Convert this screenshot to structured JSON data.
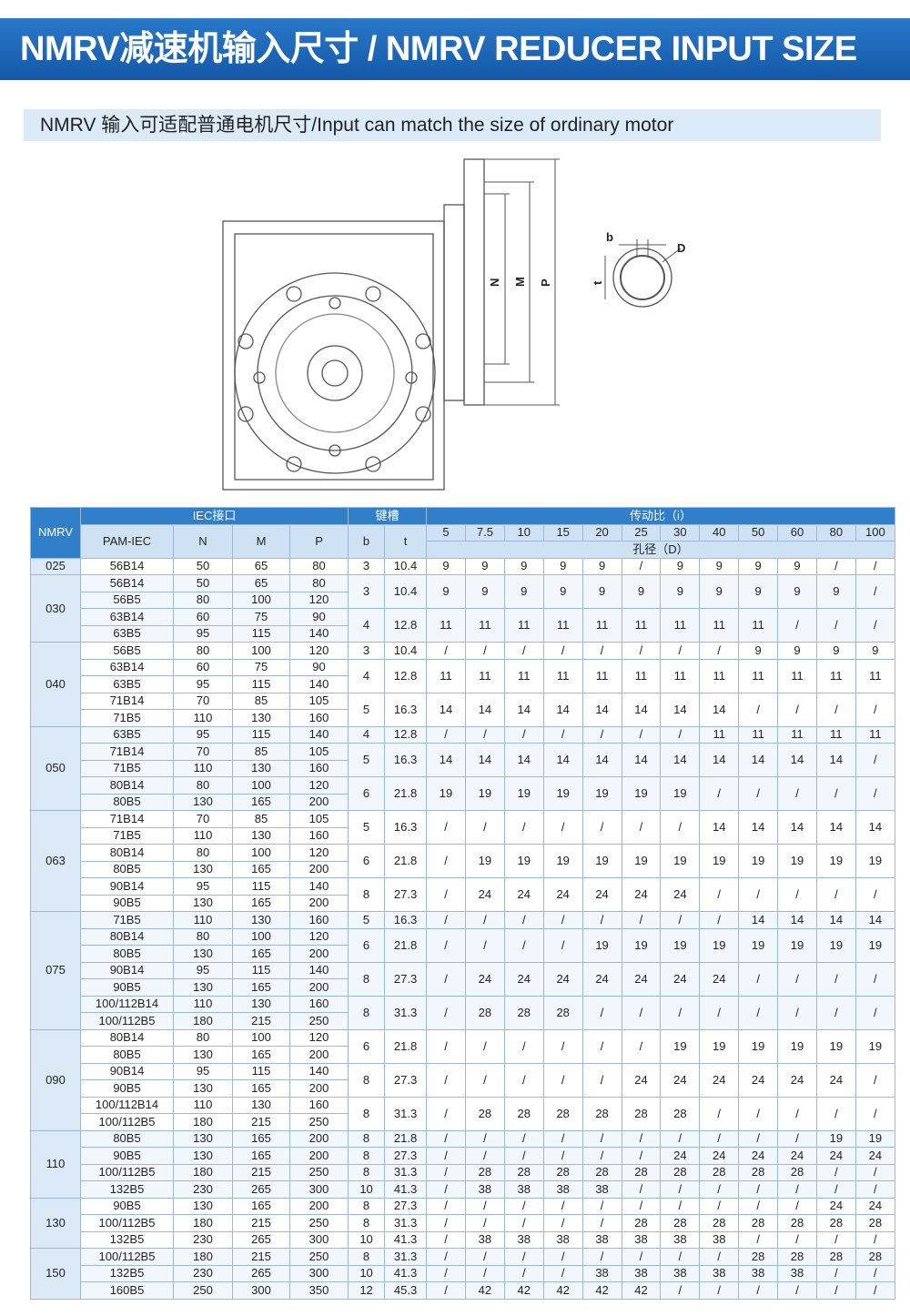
{
  "header": {
    "title": "NMRV减速机输入尺寸 / NMRV REDUCER INPUT SIZE",
    "subtitle": "NMRV 输入可适配普通电机尺寸/Input can match the size of ordinary motor"
  },
  "diagram": {
    "labels": [
      "N",
      "M",
      "P"
    ],
    "key_labels": [
      "b",
      "D",
      "t"
    ]
  },
  "table": {
    "head": {
      "nmrv": "NMRV",
      "iec": "IEC接口",
      "key": "键槽",
      "ratio": "传动比（i）",
      "cols": [
        "PAM-IEC",
        "N",
        "M",
        "P"
      ],
      "keycols": [
        "b",
        "t"
      ],
      "ratios": [
        5,
        7.5,
        10,
        15,
        20,
        25,
        30,
        40,
        50,
        60,
        80,
        100
      ],
      "bore": "孔径（D）"
    },
    "groups": [
      {
        "name": "025",
        "sets": [
          {
            "pams": [
              [
                "56B14",
                50,
                65,
                80
              ]
            ],
            "b": 3,
            "t": 10.4,
            "d": [
              9,
              9,
              9,
              9,
              9,
              "/",
              9,
              9,
              9,
              9,
              "/",
              "/"
            ]
          }
        ]
      },
      {
        "name": "030",
        "sets": [
          {
            "pams": [
              [
                "56B14",
                50,
                65,
                80
              ],
              [
                "56B5",
                80,
                100,
                120
              ]
            ],
            "b": 3,
            "t": 10.4,
            "d": [
              9,
              9,
              9,
              9,
              9,
              9,
              9,
              9,
              9,
              9,
              9,
              "/"
            ]
          },
          {
            "pams": [
              [
                "63B14",
                60,
                75,
                90
              ],
              [
                "63B5",
                95,
                115,
                140
              ]
            ],
            "b": 4,
            "t": 12.8,
            "d": [
              11,
              11,
              11,
              11,
              11,
              11,
              11,
              11,
              11,
              "/",
              "/",
              "/"
            ]
          }
        ]
      },
      {
        "name": "040",
        "sets": [
          {
            "pams": [
              [
                "56B5",
                80,
                100,
                120
              ]
            ],
            "b": 3,
            "t": 10.4,
            "d": [
              "/",
              "/",
              "/",
              "/",
              "/",
              "/",
              "/",
              "/",
              9,
              9,
              9,
              9
            ]
          },
          {
            "pams": [
              [
                "63B14",
                60,
                75,
                90
              ],
              [
                "63B5",
                95,
                115,
                140
              ]
            ],
            "b": 4,
            "t": 12.8,
            "d": [
              11,
              11,
              11,
              11,
              11,
              11,
              11,
              11,
              11,
              11,
              11,
              11
            ]
          },
          {
            "pams": [
              [
                "71B14",
                70,
                85,
                105
              ],
              [
                "71B5",
                110,
                130,
                160
              ]
            ],
            "b": 5,
            "t": 16.3,
            "d": [
              14,
              14,
              14,
              14,
              14,
              14,
              14,
              14,
              "/",
              "/",
              "/",
              "/"
            ]
          }
        ]
      },
      {
        "name": "050",
        "sets": [
          {
            "pams": [
              [
                "63B5",
                95,
                115,
                140
              ]
            ],
            "b": 4,
            "t": 12.8,
            "d": [
              "/",
              "/",
              "/",
              "/",
              "/",
              "/",
              "/",
              11,
              11,
              11,
              11,
              11
            ]
          },
          {
            "pams": [
              [
                "71B14",
                70,
                85,
                105
              ],
              [
                "71B5",
                110,
                130,
                160
              ]
            ],
            "b": 5,
            "t": 16.3,
            "d": [
              14,
              14,
              14,
              14,
              14,
              14,
              14,
              14,
              14,
              14,
              14,
              "/"
            ]
          },
          {
            "pams": [
              [
                "80B14",
                80,
                100,
                120
              ],
              [
                "80B5",
                130,
                165,
                200
              ]
            ],
            "b": 6,
            "t": 21.8,
            "d": [
              19,
              19,
              19,
              19,
              19,
              19,
              19,
              "/",
              "/",
              "/",
              "/",
              "/"
            ]
          }
        ]
      },
      {
        "name": "063",
        "sets": [
          {
            "pams": [
              [
                "71B14",
                70,
                85,
                105
              ],
              [
                "71B5",
                110,
                130,
                160
              ]
            ],
            "b": 5,
            "t": 16.3,
            "d": [
              "/",
              "/",
              "/",
              "/",
              "/",
              "/",
              "/",
              14,
              14,
              14,
              14,
              14
            ]
          },
          {
            "pams": [
              [
                "80B14",
                80,
                100,
                120
              ],
              [
                "80B5",
                130,
                165,
                200
              ]
            ],
            "b": 6,
            "t": 21.8,
            "d": [
              "/",
              19,
              19,
              19,
              19,
              19,
              19,
              19,
              19,
              19,
              19,
              19
            ]
          },
          {
            "pams": [
              [
                "90B14",
                95,
                115,
                140
              ],
              [
                "90B5",
                130,
                165,
                200
              ]
            ],
            "b": 8,
            "t": 27.3,
            "d": [
              "/",
              24,
              24,
              24,
              24,
              24,
              24,
              "/",
              "/",
              "/",
              "/",
              "/"
            ]
          }
        ]
      },
      {
        "name": "075",
        "sets": [
          {
            "pams": [
              [
                "71B5",
                110,
                130,
                160
              ]
            ],
            "b": 5,
            "t": 16.3,
            "d": [
              "/",
              "/",
              "/",
              "/",
              "/",
              "/",
              "/",
              "/",
              14,
              14,
              14,
              14
            ]
          },
          {
            "pams": [
              [
                "80B14",
                80,
                100,
                120
              ],
              [
                "80B5",
                130,
                165,
                200
              ]
            ],
            "b": 6,
            "t": 21.8,
            "d": [
              "/",
              "/",
              "/",
              "/",
              19,
              19,
              19,
              19,
              19,
              19,
              19,
              19
            ]
          },
          {
            "pams": [
              [
                "90B14",
                95,
                115,
                140
              ],
              [
                "90B5",
                130,
                165,
                200
              ]
            ],
            "b": 8,
            "t": 27.3,
            "d": [
              "/",
              24,
              24,
              24,
              24,
              24,
              24,
              24,
              "/",
              "/",
              "/",
              "/"
            ]
          },
          {
            "pams": [
              [
                "100/112B14",
                110,
                130,
                160
              ],
              [
                "100/112B5",
                180,
                215,
                250
              ]
            ],
            "b": 8,
            "t": 31.3,
            "d": [
              "/",
              28,
              28,
              28,
              "/",
              "/",
              "/",
              "/",
              "/",
              "/",
              "/",
              "/"
            ]
          }
        ]
      },
      {
        "name": "090",
        "sets": [
          {
            "pams": [
              [
                "80B14",
                80,
                100,
                120
              ],
              [
                "80B5",
                130,
                165,
                200
              ]
            ],
            "b": 6,
            "t": 21.8,
            "d": [
              "/",
              "/",
              "/",
              "/",
              "/",
              "/",
              19,
              19,
              19,
              19,
              19,
              19
            ]
          },
          {
            "pams": [
              [
                "90B14",
                95,
                115,
                140
              ],
              [
                "90B5",
                130,
                165,
                200
              ]
            ],
            "b": 8,
            "t": 27.3,
            "d": [
              "/",
              "/",
              "/",
              "/",
              "/",
              24,
              24,
              24,
              24,
              24,
              24,
              "/"
            ]
          },
          {
            "pams": [
              [
                "100/112B14",
                110,
                130,
                160
              ],
              [
                "100/112B5",
                180,
                215,
                250
              ]
            ],
            "b": 8,
            "t": 31.3,
            "d": [
              "/",
              28,
              28,
              28,
              28,
              28,
              28,
              "/",
              "/",
              "/",
              "/",
              "/"
            ]
          }
        ]
      },
      {
        "name": "110",
        "sets": [
          {
            "pams": [
              [
                "80B5",
                130,
                165,
                200
              ]
            ],
            "b": 8,
            "t": 21.8,
            "d": [
              "/",
              "/",
              "/",
              "/",
              "/",
              "/",
              "/",
              "/",
              "/",
              "/",
              19,
              19
            ]
          },
          {
            "pams": [
              [
                "90B5",
                130,
                165,
                200
              ]
            ],
            "b": 8,
            "t": 27.3,
            "d": [
              "/",
              "/",
              "/",
              "/",
              "/",
              "/",
              24,
              24,
              24,
              24,
              24,
              24
            ]
          },
          {
            "pams": [
              [
                "100/112B5",
                180,
                215,
                250
              ]
            ],
            "b": 8,
            "t": 31.3,
            "d": [
              "/",
              28,
              28,
              28,
              28,
              28,
              28,
              28,
              28,
              28,
              "/",
              "/"
            ]
          },
          {
            "pams": [
              [
                "132B5",
                230,
                265,
                300
              ]
            ],
            "b": 10,
            "t": 41.3,
            "d": [
              "/",
              38,
              38,
              38,
              38,
              "/",
              "/",
              "/",
              "/",
              "/",
              "/",
              "/"
            ]
          }
        ]
      },
      {
        "name": "130",
        "sets": [
          {
            "pams": [
              [
                "90B5",
                130,
                165,
                200
              ]
            ],
            "b": 8,
            "t": 27.3,
            "d": [
              "/",
              "/",
              "/",
              "/",
              "/",
              "/",
              "/",
              "/",
              "/",
              "/",
              24,
              24
            ]
          },
          {
            "pams": [
              [
                "100/112B5",
                180,
                215,
                250
              ]
            ],
            "b": 8,
            "t": 31.3,
            "d": [
              "/",
              "/",
              "/",
              "/",
              "/",
              28,
              28,
              28,
              28,
              28,
              28,
              28
            ]
          },
          {
            "pams": [
              [
                "132B5",
                230,
                265,
                300
              ]
            ],
            "b": 10,
            "t": 41.3,
            "d": [
              "/",
              38,
              38,
              38,
              38,
              38,
              38,
              38,
              "/",
              "/",
              "/",
              "/"
            ]
          }
        ]
      },
      {
        "name": "150",
        "sets": [
          {
            "pams": [
              [
                "100/112B5",
                180,
                215,
                250
              ]
            ],
            "b": 8,
            "t": 31.3,
            "d": [
              "/",
              "/",
              "/",
              "/",
              "/",
              "/",
              "/",
              "/",
              28,
              28,
              28,
              28
            ]
          },
          {
            "pams": [
              [
                "132B5",
                230,
                265,
                300
              ]
            ],
            "b": 10,
            "t": 41.3,
            "d": [
              "/",
              "/",
              "/",
              "/",
              38,
              38,
              38,
              38,
              38,
              38,
              "/",
              "/"
            ]
          },
          {
            "pams": [
              [
                "160B5",
                250,
                300,
                350
              ]
            ],
            "b": 12,
            "t": 45.3,
            "d": [
              "/",
              42,
              42,
              42,
              42,
              42,
              "/",
              "/",
              "/",
              "/",
              "/",
              "/"
            ]
          }
        ]
      }
    ]
  }
}
